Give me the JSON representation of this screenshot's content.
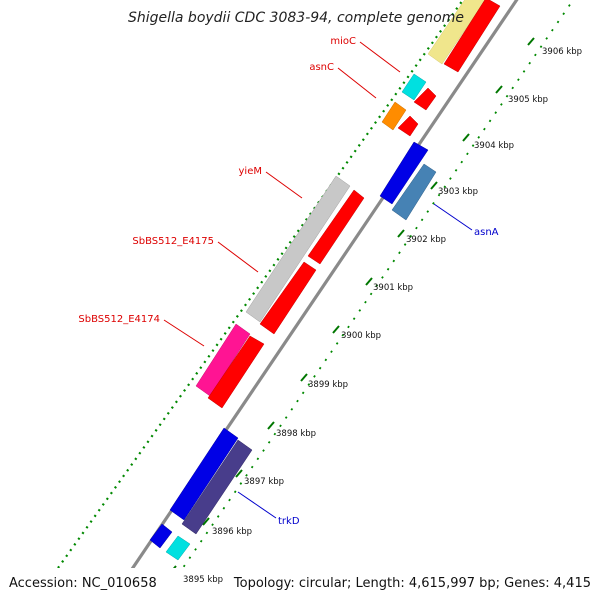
{
  "title": "Shigella boydii CDC 3083-94, complete genome",
  "footer": {
    "accession": "Accession: NC_010658",
    "summary": "Topology: circular; Length: 4,615,997 bp; Genes: 4,415"
  },
  "ticks": [
    {
      "label": "3895 kbp"
    },
    {
      "label": "3896 kbp"
    },
    {
      "label": "3897 kbp"
    },
    {
      "label": "3898 kbp"
    },
    {
      "label": "3899 kbp"
    },
    {
      "label": "3900 kbp"
    },
    {
      "label": "3901 kbp"
    },
    {
      "label": "3902 kbp"
    },
    {
      "label": "3903 kbp"
    },
    {
      "label": "3904 kbp"
    },
    {
      "label": "3905 kbp"
    },
    {
      "label": "3906 kbp"
    }
  ],
  "gene_labels": {
    "mioC": "mioC",
    "asnC": "asnC",
    "yieM": "yieM",
    "e4175": "SbBS512_E4175",
    "e4174": "SbBS512_E4174",
    "asnA": "asnA",
    "trkD": "trkD"
  },
  "colors": {
    "forward_cds": "#ff0000",
    "reverse_cds_blue": "#0000e6",
    "steel_blue": "#4682b4",
    "slate": "#483d8b",
    "cyan": "#00e0e0",
    "orange": "#ff8c00",
    "magenta": "#ff1493",
    "gray": "#c8c8c8",
    "pale_yellow": "#f0e68c",
    "tick_green": "#007700",
    "label_red": "#dd0000",
    "label_blue": "#0000cc"
  }
}
